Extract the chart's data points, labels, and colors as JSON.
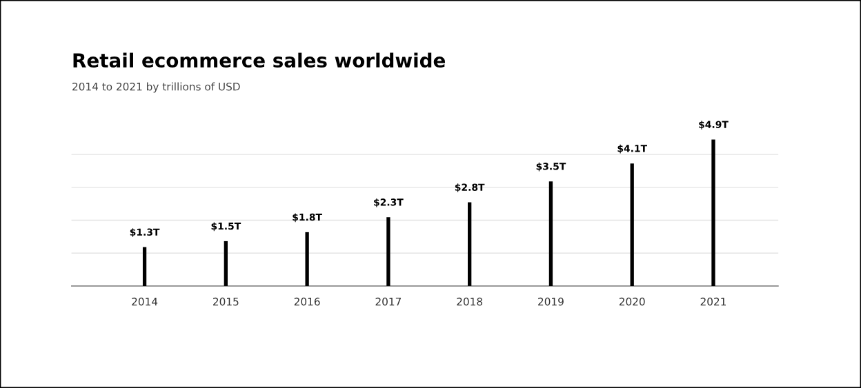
{
  "chart_data": {
    "type": "bar",
    "title": "Retail ecommerce sales worldwide",
    "subtitle": "2014 to 2021 by trillions of USD",
    "categories": [
      "2014",
      "2015",
      "2016",
      "2017",
      "2018",
      "2019",
      "2020",
      "2021"
    ],
    "values": [
      1.3,
      1.5,
      1.8,
      2.3,
      2.8,
      3.5,
      4.1,
      4.9
    ],
    "value_labels": [
      "$1.3T",
      "$1.5T",
      "$1.8T",
      "$2.3T",
      "$2.8T",
      "$3.5T",
      "$4.1T",
      "$4.9T"
    ],
    "color": "#000000",
    "yticks": [
      {
        "value": 1.1,
        "label": null
      },
      {
        "value": 2.2,
        "label": null
      },
      {
        "value": 3.3,
        "label": null
      },
      {
        "value": 4.4,
        "label": null
      }
    ],
    "tick_labels": "x",
    "grid": "y"
  }
}
